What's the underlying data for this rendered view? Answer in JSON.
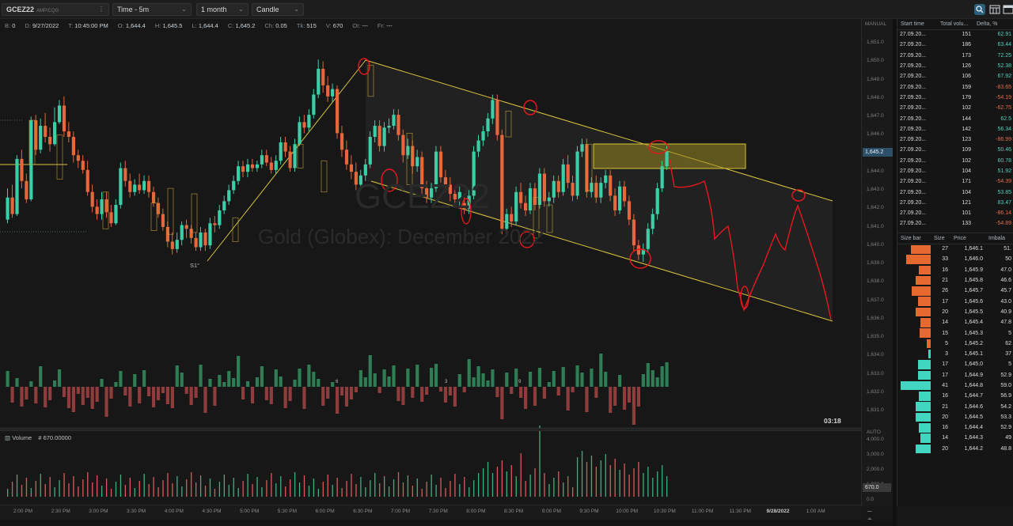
{
  "toolbar": {
    "symbol": "GCEZ22",
    "symbol_sub": "AMP/CQG",
    "time_frame": "Time - 5m",
    "period": "1 month",
    "chart_style": "Candle"
  },
  "info_bar": {
    "items": [
      {
        "k": "B:",
        "v": "0"
      },
      {
        "k": "D:",
        "v": "9/27/2022"
      },
      {
        "k": "T:",
        "v": "10:45:00 PM"
      },
      {
        "k": "O:",
        "v": "1,644.4"
      },
      {
        "k": "H:",
        "v": "1,645.5"
      },
      {
        "k": "L:",
        "v": "1,644.4"
      },
      {
        "k": "C:",
        "v": "1,645.2"
      },
      {
        "k": "Ch:",
        "v": "0.05"
      },
      {
        "k": "Tk:",
        "v": "515"
      },
      {
        "k": "V:",
        "v": "670"
      },
      {
        "k": "OI:",
        "v": "---"
      },
      {
        "k": "Fr:",
        "v": "---"
      }
    ]
  },
  "watermark": {
    "symbol": "GCEZ22",
    "name": "Gold (Globex): December 2022"
  },
  "price_axis": {
    "mode": "MANUAL",
    "labels": [
      "1,651.0",
      "1,650.0",
      "1,649.0",
      "1,648.0",
      "1,647.0",
      "1,646.0",
      "1,645.0",
      "1,644.0",
      "1,643.0",
      "1,642.0",
      "1,641.0",
      "1,640.0",
      "1,639.0",
      "1,638.0",
      "1,637.0",
      "1,636.0",
      "1,635.0",
      "1,634.0",
      "1,633.0",
      "1,632.0",
      "1,631.0"
    ],
    "current_price": "1,645.2"
  },
  "volume_axis": {
    "mode": "AUTO",
    "labels": [
      "4,000.0",
      "3,000.0",
      "2,000.0",
      "1,000.0",
      "0.0"
    ],
    "current_value": "670.0"
  },
  "volume_panel": {
    "title": "Volume",
    "value": "# 670.00000"
  },
  "timer": "03:18",
  "session_label": "S1°",
  "delta_markers": [
    "6",
    "3",
    "9"
  ],
  "time_axis": [
    "2:00 PM",
    "2:30 PM",
    "3:00 PM",
    "3:30 PM",
    "4:00 PM",
    "4:30 PM",
    "5:00 PM",
    "5:30 PM",
    "6:00 PM",
    "6:30 PM",
    "7:00 PM",
    "7:30 PM",
    "8:00 PM",
    "8:30 PM",
    "9:00 PM",
    "9:30 PM",
    "10:00 PM",
    "10:30 PM",
    "11:00 PM",
    "11:30 PM",
    "9/28/2022",
    "1:00 AM"
  ],
  "time_sales": {
    "headers": [
      "Start time",
      "Total volu...",
      "Delta, %"
    ],
    "rows": [
      {
        "time": "27.09.20...",
        "vol": "151",
        "delta": "62.91",
        "pos": true
      },
      {
        "time": "27.09.20...",
        "vol": "186",
        "delta": "63.44",
        "pos": true
      },
      {
        "time": "27.09.20...",
        "vol": "173",
        "delta": "72.25",
        "pos": true
      },
      {
        "time": "27.09.20...",
        "vol": "126",
        "delta": "52.38",
        "pos": true
      },
      {
        "time": "27.09.20...",
        "vol": "106",
        "delta": "67.92",
        "pos": true
      },
      {
        "time": "27.09.20...",
        "vol": "159",
        "delta": "-83.65",
        "pos": false
      },
      {
        "time": "27.09.20...",
        "vol": "179",
        "delta": "-54.19",
        "pos": false
      },
      {
        "time": "27.09.20...",
        "vol": "102",
        "delta": "-62.75",
        "pos": false
      },
      {
        "time": "27.09.20...",
        "vol": "144",
        "delta": "62.5",
        "pos": true
      },
      {
        "time": "27.09.20...",
        "vol": "142",
        "delta": "56.34",
        "pos": true
      },
      {
        "time": "27.09.20...",
        "vol": "123",
        "delta": "-86.99",
        "pos": false
      },
      {
        "time": "27.09.20...",
        "vol": "109",
        "delta": "50.46",
        "pos": true
      },
      {
        "time": "27.09.20...",
        "vol": "102",
        "delta": "60.78",
        "pos": true
      },
      {
        "time": "27.09.20...",
        "vol": "104",
        "delta": "51.92",
        "pos": true
      },
      {
        "time": "27.09.20...",
        "vol": "171",
        "delta": "-54.39",
        "pos": false
      },
      {
        "time": "27.09.20...",
        "vol": "104",
        "delta": "53.85",
        "pos": true
      },
      {
        "time": "27.09.20...",
        "vol": "121",
        "delta": "83.47",
        "pos": true
      },
      {
        "time": "27.09.20...",
        "vol": "101",
        "delta": "-86.14",
        "pos": false
      },
      {
        "time": "27.09.20...",
        "vol": "133",
        "delta": "-54.89",
        "pos": false
      }
    ]
  },
  "volume_profile": {
    "headers": [
      "Size bar",
      "Size",
      "Price",
      "Imbala"
    ],
    "rows": [
      {
        "size": "27",
        "price": "1,646.1",
        "imb": "51.",
        "bar": 27,
        "side": "sell"
      },
      {
        "size": "33",
        "price": "1,646.0",
        "imb": "50",
        "bar": 33,
        "side": "sell"
      },
      {
        "size": "16",
        "price": "1,645.9",
        "imb": "47.0",
        "bar": 16,
        "side": "sell"
      },
      {
        "size": "21",
        "price": "1,645.8",
        "imb": "46.6",
        "bar": 21,
        "side": "sell"
      },
      {
        "size": "26",
        "price": "1,645.7",
        "imb": "45.7",
        "bar": 26,
        "side": "sell"
      },
      {
        "size": "17",
        "price": "1,645.6",
        "imb": "43.0",
        "bar": 17,
        "side": "sell"
      },
      {
        "size": "20",
        "price": "1,645.5",
        "imb": "40.9",
        "bar": 20,
        "side": "sell"
      },
      {
        "size": "14",
        "price": "1,645.4",
        "imb": "47.8",
        "bar": 14,
        "side": "sell"
      },
      {
        "size": "15",
        "price": "1,645.3",
        "imb": "5",
        "bar": 15,
        "side": "sell"
      },
      {
        "size": "5",
        "price": "1,645.2",
        "imb": "62",
        "bar": 5,
        "side": "sell"
      },
      {
        "size": "3",
        "price": "1,645.1",
        "imb": "37",
        "bar": 3,
        "side": "buy"
      },
      {
        "size": "17",
        "price": "1,645.0",
        "imb": "5",
        "bar": 17,
        "side": "buy"
      },
      {
        "size": "17",
        "price": "1,644.9",
        "imb": "52.9",
        "bar": 17,
        "side": "buy"
      },
      {
        "size": "41",
        "price": "1,644.8",
        "imb": "59.0",
        "bar": 41,
        "side": "buy"
      },
      {
        "size": "16",
        "price": "1,644.7",
        "imb": "56.9",
        "bar": 16,
        "side": "buy"
      },
      {
        "size": "21",
        "price": "1,644.6",
        "imb": "54.2",
        "bar": 21,
        "side": "buy"
      },
      {
        "size": "20",
        "price": "1,644.5",
        "imb": "53.3",
        "bar": 20,
        "side": "buy"
      },
      {
        "size": "16",
        "price": "1,644.4",
        "imb": "52.9",
        "bar": 16,
        "side": "buy"
      },
      {
        "size": "14",
        "price": "1,644.3",
        "imb": "49",
        "bar": 14,
        "side": "buy"
      },
      {
        "size": "20",
        "price": "1,644.2",
        "imb": "48.8",
        "bar": 20,
        "side": "buy"
      }
    ]
  },
  "colors": {
    "up": "#3ccfa7",
    "down": "#e5673c",
    "vol_up": "#2f7d54",
    "vol_down": "#8e3c3c",
    "channel": "#d8c33a",
    "annot": "#e8171f",
    "accent": "#2d5068"
  },
  "icons": [
    "search-icon",
    "grid-icon",
    "calendar-icon",
    "chevron-down-icon",
    "expand-icon",
    "plus-icon"
  ]
}
